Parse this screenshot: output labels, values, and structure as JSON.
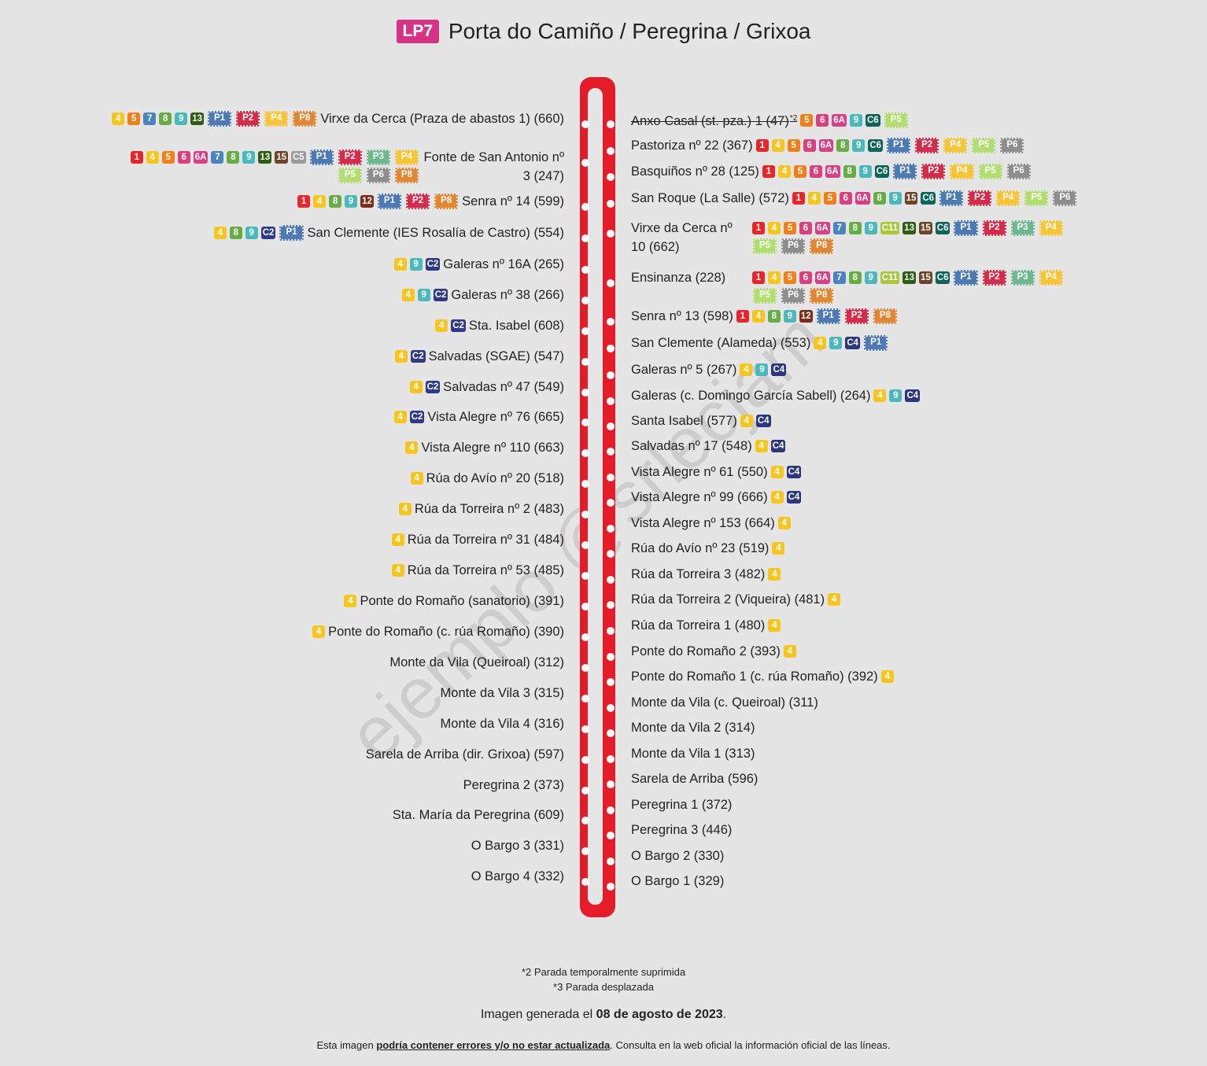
{
  "title": {
    "line": "LP7",
    "text": "Porta do Camiño / Peregrina / Grixoa"
  },
  "colors": {
    "1": "#e6262a",
    "4": "#f7c520",
    "5": "#ef7f16",
    "6": "#d9407d",
    "6A": "#d83f86",
    "7": "#4a83c0",
    "8": "#66ad45",
    "9": "#4bb8bb",
    "12": "#7b2c1a",
    "13": "#2c5e12",
    "15": "#6d4427",
    "C2": "#2f3985",
    "C4": "#2b3580",
    "C5": "#9a9a9a",
    "C6": "#0d6559",
    "C11": "#a9c83b",
    "P1": "#4d79b5",
    "P2": "#d42c4a",
    "P3": "#6db88f",
    "P4": "#f8c536",
    "P5": "#b2de6f",
    "P6": "#8e8e8e",
    "P8": "#e38631",
    "route": "#e41c2a"
  },
  "left_stops": [
    {
      "name": "Virxe da Cerca (Praza de abastos 1) (660)",
      "lines": [
        "4",
        "5",
        "7",
        "8",
        "9",
        "13",
        "P1",
        "P2",
        "P4",
        "P8"
      ]
    },
    {
      "name": "Fonte de San Antonio nº 3 (247)",
      "lines": [
        "1",
        "4",
        "5",
        "6",
        "6A",
        "7",
        "8",
        "9",
        "13",
        "15",
        "C5",
        "P1",
        "P2",
        "P3",
        "P4",
        "P5",
        "P6",
        "P8"
      ],
      "wrap": true
    },
    {
      "name": "Senra nº 14 (599)",
      "lines": [
        "1",
        "4",
        "8",
        "9",
        "12",
        "P1",
        "P2",
        "P8"
      ]
    },
    {
      "name": "San Clemente (IES Rosalía de Castro) (554)",
      "lines": [
        "4",
        "8",
        "9",
        "C2",
        "P1"
      ]
    },
    {
      "name": "Galeras nº 16A (265)",
      "lines": [
        "4",
        "9",
        "C2"
      ]
    },
    {
      "name": "Galeras nº 38 (266)",
      "lines": [
        "4",
        "9",
        "C2"
      ]
    },
    {
      "name": "Sta. Isabel (608)",
      "lines": [
        "4",
        "C2"
      ]
    },
    {
      "name": "Salvadas (SGAE) (547)",
      "lines": [
        "4",
        "C2"
      ]
    },
    {
      "name": "Salvadas nº 47 (549)",
      "lines": [
        "4",
        "C2"
      ]
    },
    {
      "name": "Vista Alegre nº 76 (665)",
      "lines": [
        "4",
        "C2"
      ]
    },
    {
      "name": "Vista Alegre nº 110 (663)",
      "lines": [
        "4"
      ]
    },
    {
      "name": "Rúa do Avío nº 20 (518)",
      "lines": [
        "4"
      ]
    },
    {
      "name": "Rúa da Torreira nº 2 (483)",
      "lines": [
        "4"
      ]
    },
    {
      "name": "Rúa da Torreira nº 31 (484)",
      "lines": [
        "4"
      ]
    },
    {
      "name": "Rúa da Torreira nº 53 (485)",
      "lines": [
        "4"
      ]
    },
    {
      "name": "Ponte do Romaño (sanatorio) (391)",
      "lines": [
        "4"
      ]
    },
    {
      "name": "Ponte do Romaño (c. rúa Romaño) (390)",
      "lines": [
        "4"
      ]
    },
    {
      "name": "Monte da Vila (Queiroal) (312)",
      "lines": []
    },
    {
      "name": "Monte da Vila 3 (315)",
      "lines": []
    },
    {
      "name": "Monte da Vila 4 (316)",
      "lines": []
    },
    {
      "name": "Sarela de Arriba (dir. Grixoa) (597)",
      "lines": []
    },
    {
      "name": "Peregrina 2 (373)",
      "lines": []
    },
    {
      "name": "Sta. María da Peregrina (609)",
      "lines": []
    },
    {
      "name": "O Bargo 3 (331)",
      "lines": []
    },
    {
      "name": "O Bargo 4 (332)",
      "lines": []
    }
  ],
  "right_stops": [
    {
      "name": "Anxo Casal (st. pza.) 1 (47)",
      "note": "*2",
      "struck": true,
      "lines": [
        "5",
        "6",
        "6A",
        "9",
        "C6",
        "P5"
      ]
    },
    {
      "name": "Pastoriza nº 22 (367)",
      "lines": [
        "1",
        "4",
        "5",
        "6",
        "6A",
        "8",
        "9",
        "C6",
        "P1",
        "P2",
        "P4",
        "P5",
        "P6"
      ]
    },
    {
      "name": "Basquiños nº 28 (125)",
      "lines": [
        "1",
        "4",
        "5",
        "6",
        "6A",
        "8",
        "9",
        "C6",
        "P1",
        "P2",
        "P4",
        "P5",
        "P6"
      ]
    },
    {
      "name": "San Roque (La Salle) (572)",
      "lines": [
        "1",
        "4",
        "5",
        "6",
        "6A",
        "8",
        "9",
        "15",
        "C6",
        "P1",
        "P2",
        "P4",
        "P5",
        "P6"
      ]
    },
    {
      "name": "Virxe da Cerca nº 10 (662)",
      "lines": [
        "1",
        "4",
        "5",
        "6",
        "6A",
        "7",
        "8",
        "9",
        "C11",
        "13",
        "15",
        "C6",
        "P1",
        "P2",
        "P3",
        "P4",
        "P5",
        "P6",
        "P8"
      ],
      "wrap": true
    },
    {
      "name": "Ensinanza (228)",
      "lines": [
        "1",
        "4",
        "5",
        "6",
        "6A",
        "7",
        "8",
        "9",
        "C11",
        "13",
        "15",
        "C6",
        "P1",
        "P2",
        "P3",
        "P4",
        "P5",
        "P6",
        "P8"
      ],
      "wrap": true
    },
    {
      "name": "Senra nº 13 (598)",
      "lines": [
        "1",
        "4",
        "8",
        "9",
        "12",
        "P1",
        "P2",
        "P8"
      ]
    },
    {
      "name": "San Clemente (Alameda) (553)",
      "lines": [
        "4",
        "9",
        "C4",
        "P1"
      ]
    },
    {
      "name": "Galeras nº 5 (267)",
      "lines": [
        "4",
        "9",
        "C4"
      ]
    },
    {
      "name": "Galeras (c. Domingo García Sabell) (264)",
      "lines": [
        "4",
        "9",
        "C4"
      ]
    },
    {
      "name": "Santa Isabel (577)",
      "lines": [
        "4",
        "C4"
      ]
    },
    {
      "name": "Salvadas nº 17 (548)",
      "lines": [
        "4",
        "C4"
      ]
    },
    {
      "name": "Vista Alegre nº 61 (550)",
      "lines": [
        "4",
        "C4"
      ]
    },
    {
      "name": "Vista Alegre nº 99 (666)",
      "lines": [
        "4",
        "C4"
      ]
    },
    {
      "name": "Vista Alegre nº 153 (664)",
      "lines": [
        "4"
      ]
    },
    {
      "name": "Rúa do Avío nº 23 (519)",
      "lines": [
        "4"
      ]
    },
    {
      "name": "Rúa da Torreira 3 (482)",
      "lines": [
        "4"
      ]
    },
    {
      "name": "Rúa da Torreira 2 (Viqueira) (481)",
      "lines": [
        "4"
      ]
    },
    {
      "name": "Rúa da Torreira 1 (480)",
      "lines": [
        "4"
      ]
    },
    {
      "name": "Ponte do Romaño 2 (393)",
      "lines": [
        "4"
      ]
    },
    {
      "name": "Ponte do Romaño 1 (c. rúa Romaño) (392)",
      "lines": [
        "4"
      ]
    },
    {
      "name": "Monte da Vila (c. Queiroal) (311)",
      "lines": []
    },
    {
      "name": "Monte da Vila 2 (314)",
      "lines": []
    },
    {
      "name": "Monte da Vila 1 (313)",
      "lines": []
    },
    {
      "name": "Sarela de Arriba (596)",
      "lines": []
    },
    {
      "name": "Peregrina 1 (372)",
      "lines": []
    },
    {
      "name": "Peregrina 3 (446)",
      "lines": []
    },
    {
      "name": "O Bargo 2 (330)",
      "lines": []
    },
    {
      "name": "O Bargo 1 (329)",
      "lines": []
    }
  ],
  "watermark": "ejemplo @srlecjam",
  "footnotes": [
    "*2 Parada temporalmente suprimida",
    "*3 Parada desplazada"
  ],
  "generated": {
    "prefix": "Imagen generada el ",
    "date": "08 de agosto de 2023",
    "suffix": "."
  },
  "disclaimer": {
    "prefix": "Esta imagen ",
    "emph": "podría contener errores y/o no estar actualizada",
    "suffix": ". Consulta en la web oficial la información oficial de las líneas."
  }
}
